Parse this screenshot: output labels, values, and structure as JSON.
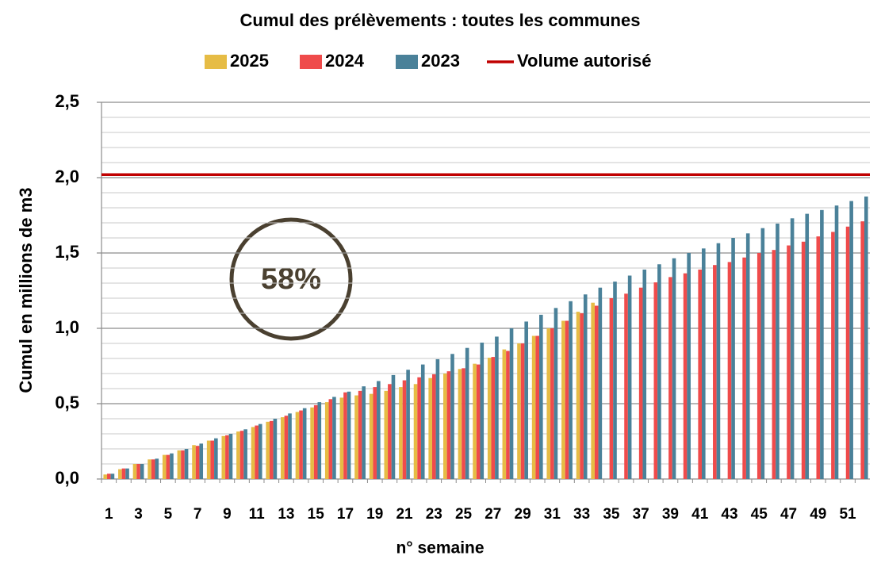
{
  "chart_data": {
    "type": "bar",
    "title": "Cumul des prélèvements : toutes les communes",
    "x_label": "n° semaine",
    "y_label": "Cumul en millions de m3",
    "categories": [
      1,
      null,
      3,
      null,
      5,
      null,
      7,
      null,
      9,
      null,
      11,
      null,
      13,
      null,
      15,
      null,
      17,
      null,
      19,
      null,
      21,
      null,
      23,
      null,
      25,
      null,
      27,
      null,
      29,
      null,
      31,
      null,
      33,
      null,
      35,
      null,
      37,
      null,
      39,
      null,
      41,
      null,
      43,
      null,
      45,
      null,
      47,
      null,
      49,
      null,
      51,
      null
    ],
    "series": [
      {
        "name": "2025",
        "color": "#e6bc45",
        "values": [
          0.03,
          0.065,
          0.1,
          0.13,
          0.16,
          0.19,
          0.225,
          0.255,
          0.285,
          0.315,
          0.345,
          0.38,
          0.41,
          0.445,
          0.475,
          0.51,
          0.54,
          0.555,
          0.565,
          0.585,
          0.61,
          0.63,
          0.67,
          0.7,
          0.73,
          0.765,
          0.805,
          0.86,
          0.9,
          0.95,
          1.0,
          1.05,
          1.11,
          1.17,
          null,
          null,
          null,
          null,
          null,
          null,
          null,
          null,
          null,
          null,
          null,
          null,
          null,
          null,
          null,
          null,
          null,
          null
        ]
      },
      {
        "name": "2024",
        "color": "#ef4b4b",
        "values": [
          0.035,
          0.07,
          0.1,
          0.13,
          0.16,
          0.19,
          0.22,
          0.255,
          0.29,
          0.32,
          0.355,
          0.385,
          0.42,
          0.455,
          0.49,
          0.53,
          0.575,
          0.585,
          0.61,
          0.63,
          0.655,
          0.675,
          0.695,
          0.715,
          0.735,
          0.76,
          0.81,
          0.85,
          0.9,
          0.95,
          1.0,
          1.05,
          1.1,
          1.15,
          1.2,
          1.23,
          1.27,
          1.305,
          1.34,
          1.365,
          1.39,
          1.42,
          1.44,
          1.47,
          1.5,
          1.52,
          1.55,
          1.575,
          1.61,
          1.64,
          1.675,
          1.71
        ]
      },
      {
        "name": "2023",
        "color": "#4a8199",
        "values": [
          0.035,
          0.07,
          0.1,
          0.135,
          0.17,
          0.2,
          0.235,
          0.27,
          0.3,
          0.33,
          0.365,
          0.4,
          0.435,
          0.47,
          0.51,
          0.545,
          0.58,
          0.615,
          0.65,
          0.69,
          0.725,
          0.76,
          0.795,
          0.83,
          0.87,
          0.905,
          0.945,
          1.0,
          1.045,
          1.09,
          1.135,
          1.18,
          1.225,
          1.27,
          1.31,
          1.35,
          1.39,
          1.425,
          1.465,
          1.5,
          1.53,
          1.565,
          1.6,
          1.63,
          1.665,
          1.695,
          1.73,
          1.76,
          1.785,
          1.815,
          1.845,
          1.875
        ]
      }
    ],
    "limit": {
      "name": "Volume autorisé",
      "value": 2.02,
      "color": "#c00000"
    },
    "annotation": "58%",
    "ylim": [
      0,
      2.5
    ],
    "yticks": [
      {
        "value": 0,
        "label": "0,0"
      },
      {
        "value": 0.5,
        "label": "0,5"
      },
      {
        "value": 1,
        "label": "1,0"
      },
      {
        "value": 1.5,
        "label": "1,5"
      },
      {
        "value": 2,
        "label": "2,0"
      },
      {
        "value": 2.5,
        "label": "2,5"
      }
    ],
    "yminorticks": [
      0.1,
      0.2,
      0.3,
      0.4,
      0.6,
      0.7,
      0.8,
      0.9,
      1.1,
      1.2,
      1.3,
      1.4,
      1.6,
      1.7,
      1.8,
      1.9,
      2.1,
      2.2,
      2.3,
      2.4
    ],
    "grid": true,
    "legend": "top"
  }
}
